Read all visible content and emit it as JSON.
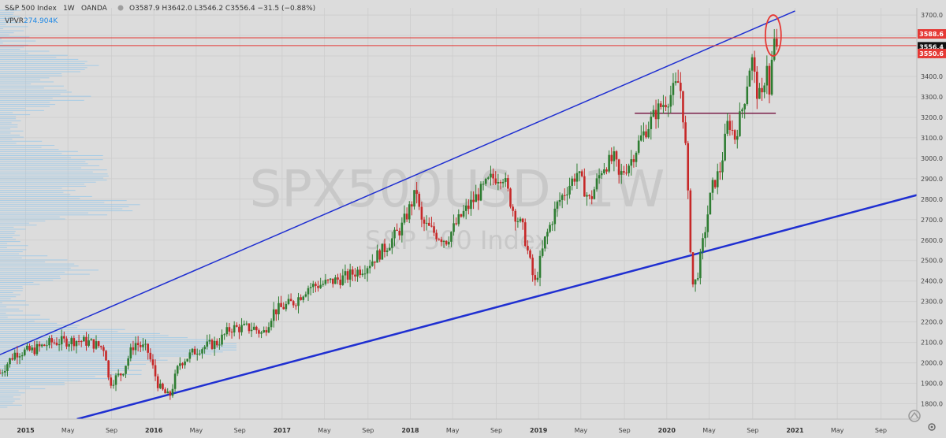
{
  "header": {
    "symbol": "S&P 500 Index",
    "interval": "1W",
    "broker": "OANDA",
    "ohlc": "O3587.9 H3642.0 L3546.2 C3556.4 −31.5 (−0.88%)",
    "indicator_name": "VPVR",
    "indicator_value": "274.904K"
  },
  "watermark": {
    "ticker": "SPX500USD, 1W",
    "name": "S&P 500 Index"
  },
  "colors": {
    "background": "#dcdcdc",
    "grid": "#cfcfcf",
    "up": "#2e7d32",
    "down": "#c62828",
    "channel": "#1f2fd1",
    "hline": "#e53935",
    "support": "#7b1f4a",
    "vp": "#9ec9e8"
  },
  "chart_data": {
    "type": "candlestick",
    "ylim": [
      1725,
      3735
    ],
    "x_range": [
      2014.8,
      2021.95
    ],
    "y_ticks": [
      1800,
      1900,
      2000,
      2100,
      2200,
      2300,
      2400,
      2500,
      2600,
      2700,
      2800,
      2900,
      3000,
      3100,
      3200,
      3300,
      3400,
      3500,
      3600,
      3700
    ],
    "x_ticks": [
      {
        "label": "2015",
        "t": 2015.0
      },
      {
        "label": "May",
        "t": 2015.33
      },
      {
        "label": "Sep",
        "t": 2015.67
      },
      {
        "label": "2016",
        "t": 2016.0
      },
      {
        "label": "May",
        "t": 2016.33
      },
      {
        "label": "Sep",
        "t": 2016.67
      },
      {
        "label": "2017",
        "t": 2017.0
      },
      {
        "label": "May",
        "t": 2017.33
      },
      {
        "label": "Sep",
        "t": 2017.67
      },
      {
        "label": "2018",
        "t": 2018.0
      },
      {
        "label": "May",
        "t": 2018.33
      },
      {
        "label": "Sep",
        "t": 2018.67
      },
      {
        "label": "2019",
        "t": 2019.0
      },
      {
        "label": "May",
        "t": 2019.33
      },
      {
        "label": "Sep",
        "t": 2019.67
      },
      {
        "label": "2020",
        "t": 2020.0
      },
      {
        "label": "May",
        "t": 2020.33
      },
      {
        "label": "Sep",
        "t": 2020.67
      },
      {
        "label": "2021",
        "t": 2021.0
      },
      {
        "label": "May",
        "t": 2021.33
      },
      {
        "label": "Sep",
        "t": 2021.67
      }
    ],
    "price_labels": [
      {
        "value": 3588.6,
        "text": "3588.6",
        "color": "#e53935"
      },
      {
        "value": 3556.4,
        "text": "3556.4",
        "color": "#111111"
      },
      {
        "value": 3550.6,
        "text": "3550.6",
        "color": "#e53935"
      }
    ],
    "horizontal_lines": [
      3588.6,
      3550.6
    ],
    "support_line": {
      "t1": 2019.75,
      "t2": 2020.85,
      "price": 3220
    },
    "channel_upper": {
      "t1": 2014.8,
      "p1": 2040,
      "t2": 2021.0,
      "p2": 3720
    },
    "channel_lower": {
      "t1": 2015.4,
      "p1": 1725,
      "t2": 2021.95,
      "p2": 2820
    },
    "circle_annotation": {
      "t": 2020.83,
      "price": 3600
    },
    "close_path": [
      [
        2014.8,
        1950
      ],
      [
        2014.92,
        2050
      ],
      [
        2015.05,
        2060
      ],
      [
        2015.2,
        2100
      ],
      [
        2015.4,
        2110
      ],
      [
        2015.5,
        2100
      ],
      [
        2015.62,
        2070
      ],
      [
        2015.65,
        1900
      ],
      [
        2015.75,
        1950
      ],
      [
        2015.85,
        2100
      ],
      [
        2015.95,
        2060
      ],
      [
        2016.04,
        1880
      ],
      [
        2016.12,
        1830
      ],
      [
        2016.2,
        2000
      ],
      [
        2016.35,
        2070
      ],
      [
        2016.5,
        2100
      ],
      [
        2016.6,
        2170
      ],
      [
        2016.78,
        2170
      ],
      [
        2016.85,
        2140
      ],
      [
        2016.93,
        2250
      ],
      [
        2017.1,
        2300
      ],
      [
        2017.2,
        2370
      ],
      [
        2017.35,
        2390
      ],
      [
        2017.5,
        2420
      ],
      [
        2017.65,
        2470
      ],
      [
        2017.8,
        2560
      ],
      [
        2017.93,
        2660
      ],
      [
        2018.05,
        2840
      ],
      [
        2018.08,
        2690
      ],
      [
        2018.2,
        2630
      ],
      [
        2018.28,
        2600
      ],
      [
        2018.4,
        2720
      ],
      [
        2018.5,
        2800
      ],
      [
        2018.63,
        2900
      ],
      [
        2018.72,
        2920
      ],
      [
        2018.8,
        2750
      ],
      [
        2018.88,
        2650
      ],
      [
        2018.97,
        2380
      ],
      [
        2019.05,
        2600
      ],
      [
        2019.15,
        2780
      ],
      [
        2019.3,
        2930
      ],
      [
        2019.4,
        2790
      ],
      [
        2019.5,
        2960
      ],
      [
        2019.6,
        3000
      ],
      [
        2019.62,
        2900
      ],
      [
        2019.72,
        2990
      ],
      [
        2019.8,
        3100
      ],
      [
        2019.92,
        3230
      ],
      [
        2020.02,
        3300
      ],
      [
        2020.1,
        3380
      ],
      [
        2020.14,
        3130
      ],
      [
        2020.17,
        2750
      ],
      [
        2020.2,
        2380
      ],
      [
        2020.23,
        2400
      ],
      [
        2020.27,
        2540
      ],
      [
        2020.35,
        2850
      ],
      [
        2020.42,
        2950
      ],
      [
        2020.48,
        3190
      ],
      [
        2020.53,
        3100
      ],
      [
        2020.6,
        3270
      ],
      [
        2020.66,
        3500
      ],
      [
        2020.7,
        3330
      ],
      [
        2020.74,
        3280
      ],
      [
        2020.78,
        3480
      ],
      [
        2020.8,
        3300
      ],
      [
        2020.83,
        3560
      ],
      [
        2020.86,
        3556
      ]
    ],
    "volume_profile_note": "horizontal volume bars on left edge, strongest near 2000-2100"
  }
}
